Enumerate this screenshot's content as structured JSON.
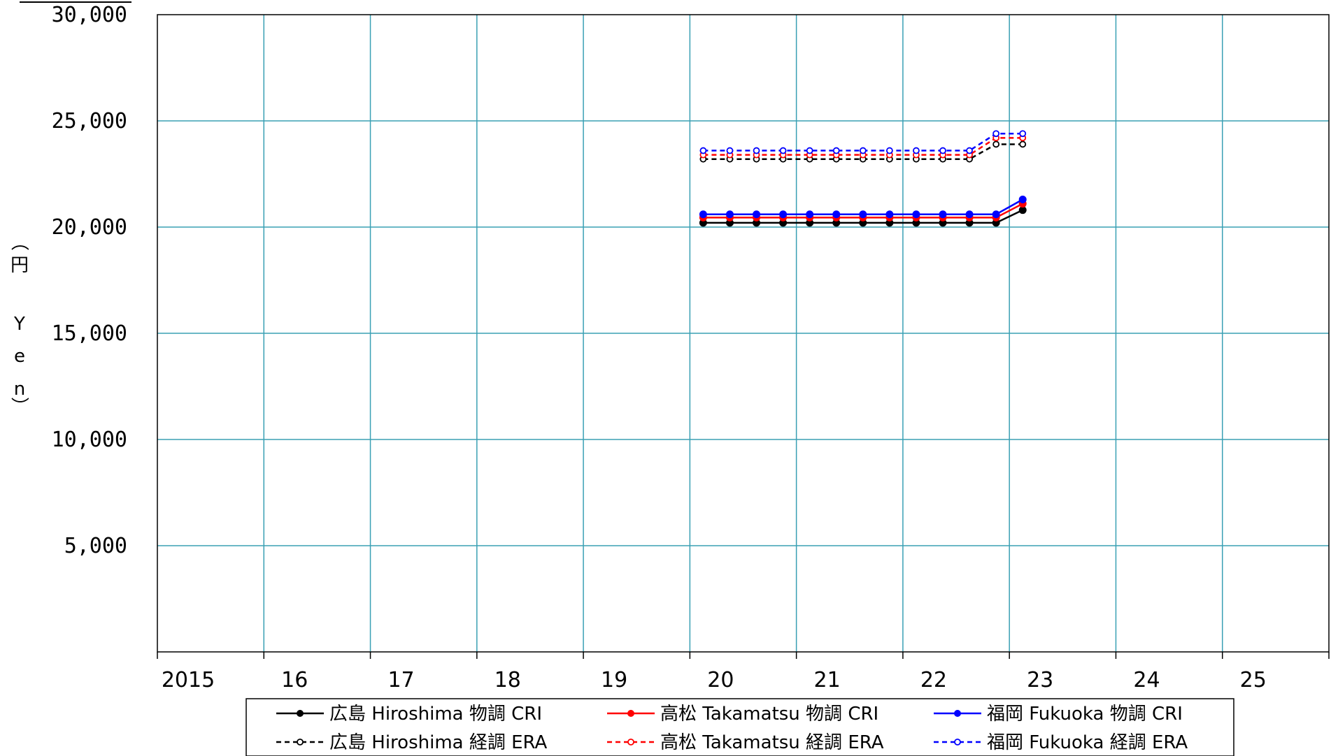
{
  "chart_data": {
    "type": "line",
    "title": "",
    "ylabel": "（円 Yen）",
    "xlabel": "",
    "x_ticks": [
      "2015",
      "16",
      "17",
      "18",
      "19",
      "20",
      "21",
      "22",
      "23",
      "24",
      "25"
    ],
    "y_ticks": [
      "30,000",
      "25,000",
      "20,000",
      "15,000",
      "10,000",
      "5,000"
    ],
    "xlim": [
      2015,
      2026
    ],
    "ylim": [
      0,
      30000
    ],
    "grid": true,
    "legend_position": "bottom",
    "x": [
      2020.125,
      2020.375,
      2020.625,
      2020.875,
      2021.125,
      2021.375,
      2021.625,
      2021.875,
      2022.125,
      2022.375,
      2022.625,
      2022.875,
      2023.125
    ],
    "series": [
      {
        "name": "広島 Hiroshima 物調 CRI",
        "color": "#000000",
        "style": "solid",
        "marker": "filled",
        "values": [
          20200,
          20200,
          20200,
          20200,
          20200,
          20200,
          20200,
          20200,
          20200,
          20200,
          20200,
          20200,
          20800
        ]
      },
      {
        "name": "高松 Takamatsu 物調 CRI",
        "color": "#ff0000",
        "style": "solid",
        "marker": "filled",
        "values": [
          20450,
          20450,
          20450,
          20450,
          20450,
          20450,
          20450,
          20450,
          20450,
          20450,
          20450,
          20450,
          21100
        ]
      },
      {
        "name": "福岡 Fukuoka  物調 CRI",
        "color": "#0000ff",
        "style": "solid",
        "marker": "filled",
        "values": [
          20600,
          20600,
          20600,
          20600,
          20600,
          20600,
          20600,
          20600,
          20600,
          20600,
          20600,
          20600,
          21300
        ]
      },
      {
        "name": "広島 Hiroshima 経調 ERA",
        "color": "#000000",
        "style": "dashed",
        "marker": "open",
        "values": [
          23200,
          23200,
          23200,
          23200,
          23200,
          23200,
          23200,
          23200,
          23200,
          23200,
          23200,
          23900,
          23900
        ]
      },
      {
        "name": "高松 Takamatsu 経調 ERA",
        "color": "#ff0000",
        "style": "dashed",
        "marker": "open",
        "values": [
          23400,
          23400,
          23400,
          23400,
          23400,
          23400,
          23400,
          23400,
          23400,
          23400,
          23400,
          24200,
          24200
        ]
      },
      {
        "name": "福岡 Fukuoka  経調 ERA",
        "color": "#0000ff",
        "style": "dashed",
        "marker": "open",
        "values": [
          23600,
          23600,
          23600,
          23600,
          23600,
          23600,
          23600,
          23600,
          23600,
          23600,
          23600,
          24400,
          24400
        ]
      }
    ],
    "colors": {
      "grid": "#3aa0b4",
      "axis": "#000000"
    }
  }
}
